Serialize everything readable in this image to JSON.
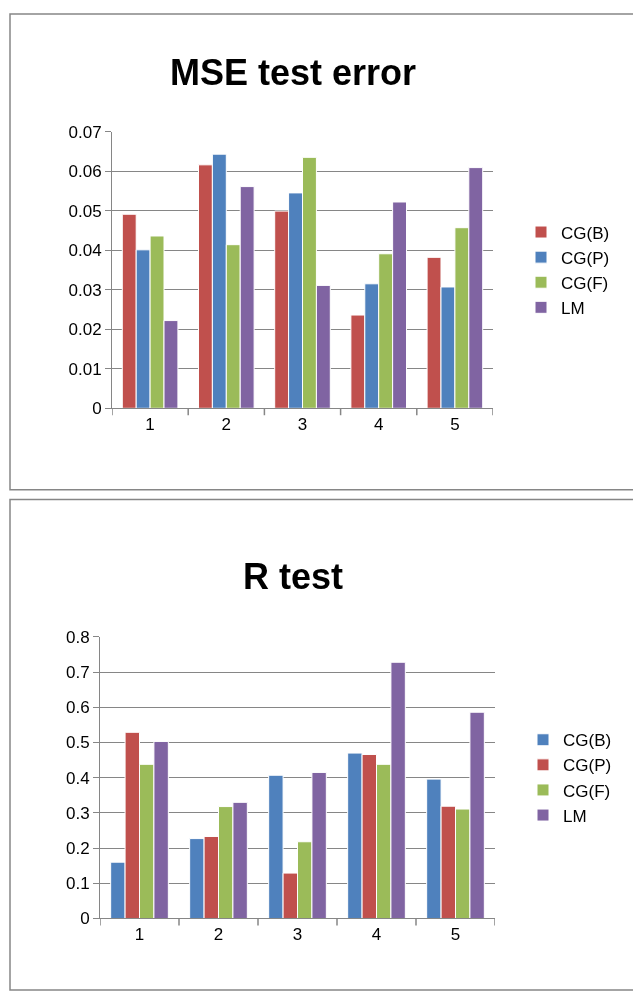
{
  "chart_data": [
    {
      "type": "bar",
      "title": "MSE test error",
      "categories": [
        "1",
        "2",
        "3",
        "4",
        "5"
      ],
      "series": [
        {
          "name": "CG(B)",
          "color": "#c0504d",
          "values": [
            0.0491,
            0.0616,
            0.0499,
            0.0236,
            0.0382
          ]
        },
        {
          "name": "CG(P)",
          "color": "#4f81bd",
          "values": [
            0.0401,
            0.0643,
            0.0545,
            0.0315,
            0.0307
          ]
        },
        {
          "name": "CG(F)",
          "color": "#9bbb59",
          "values": [
            0.0436,
            0.0414,
            0.0635,
            0.0391,
            0.0457
          ]
        },
        {
          "name": "LM",
          "color": "#8064a2",
          "values": [
            0.0222,
            0.0561,
            0.0311,
            0.0522,
            0.0609
          ]
        }
      ],
      "ylim": [
        0,
        0.07
      ],
      "yticks": [
        0,
        0.01,
        0.02,
        0.03,
        0.04,
        0.05,
        0.06,
        0.07
      ],
      "grid": "y",
      "legend": "right"
    },
    {
      "type": "bar",
      "title": "R test",
      "categories": [
        "1",
        "2",
        "3",
        "4",
        "5"
      ],
      "series": [
        {
          "name": "CG(B)",
          "color": "#4f81bd",
          "values": [
            0.16,
            0.227,
            0.407,
            0.47,
            0.396
          ]
        },
        {
          "name": "CG(P)",
          "color": "#c0504d",
          "values": [
            0.529,
            0.233,
            0.129,
            0.466,
            0.319
          ]
        },
        {
          "name": "CG(F)",
          "color": "#9bbb59",
          "values": [
            0.438,
            0.318,
            0.218,
            0.438,
            0.311
          ]
        },
        {
          "name": "LM",
          "color": "#8064a2",
          "values": [
            0.503,
            0.33,
            0.415,
            0.728,
            0.586
          ]
        }
      ],
      "ylim": [
        0,
        0.8
      ],
      "yticks": [
        0,
        0.1,
        0.2,
        0.3,
        0.4,
        0.5,
        0.6,
        0.7,
        0.8
      ],
      "grid": "y",
      "legend": "right"
    }
  ]
}
